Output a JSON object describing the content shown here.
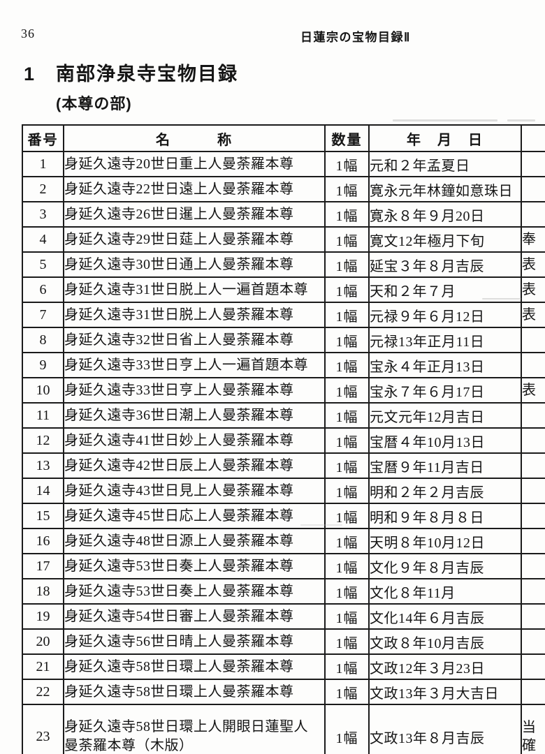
{
  "page": {
    "page_number": "36",
    "running_head": "日蓮宗の宝物目録Ⅱ",
    "section_number": "1",
    "title": "南部浄泉寺宝物目録",
    "subtitle": "(本尊の部)"
  },
  "table": {
    "headers": {
      "number": "番号",
      "name": "名　　　称",
      "quantity": "数量",
      "date": "年　月　日",
      "note": ""
    },
    "rows": [
      {
        "no": "1",
        "name": "身延久遠寺20世日重上人曼荼羅本尊",
        "qty": "1幅",
        "date": "元和２年孟夏日",
        "note": ""
      },
      {
        "no": "2",
        "name": "身延久遠寺22世日遠上人曼荼羅本尊",
        "qty": "1幅",
        "date": "寛永元年林鐘如意珠日",
        "note": ""
      },
      {
        "no": "3",
        "name": "身延久遠寺26世日暹上人曼荼羅本尊",
        "qty": "1幅",
        "date": "寛永８年９月20日",
        "note": ""
      },
      {
        "no": "4",
        "name": "身延久遠寺29世日莚上人曼荼羅本尊",
        "qty": "1幅",
        "date": "寛文12年極月下旬",
        "note": "奉"
      },
      {
        "no": "5",
        "name": "身延久遠寺30世日通上人曼荼羅本尊",
        "qty": "1幅",
        "date": "延宝３年８月吉辰",
        "note": "表"
      },
      {
        "no": "6",
        "name": "身延久遠寺31世日脱上人一遍首題本尊",
        "qty": "1幅",
        "date": "天和２年７月",
        "note": "表"
      },
      {
        "no": "7",
        "name": "身延久遠寺31世日脱上人曼荼羅本尊",
        "qty": "1幅",
        "date": "元禄９年６月12日",
        "note": "表"
      },
      {
        "no": "8",
        "name": "身延久遠寺32世日省上人曼荼羅本尊",
        "qty": "1幅",
        "date": "元禄13年正月11日",
        "note": ""
      },
      {
        "no": "9",
        "name": "身延久遠寺33世日亨上人一遍首題本尊",
        "qty": "1幅",
        "date": "宝永４年正月13日",
        "note": ""
      },
      {
        "no": "10",
        "name": "身延久遠寺33世日亨上人曼荼羅本尊",
        "qty": "1幅",
        "date": "宝永７年６月17日",
        "note": "表"
      },
      {
        "no": "11",
        "name": "身延久遠寺36世日潮上人曼荼羅本尊",
        "qty": "1幅",
        "date": "元文元年12月吉日",
        "note": ""
      },
      {
        "no": "12",
        "name": "身延久遠寺41世日妙上人曼荼羅本尊",
        "qty": "1幅",
        "date": "宝暦４年10月13日",
        "note": ""
      },
      {
        "no": "13",
        "name": "身延久遠寺42世日辰上人曼荼羅本尊",
        "qty": "1幅",
        "date": "宝暦９年11月吉日",
        "note": ""
      },
      {
        "no": "14",
        "name": "身延久遠寺43世日見上人曼荼羅本尊",
        "qty": "1幅",
        "date": "明和２年２月吉辰",
        "note": ""
      },
      {
        "no": "15",
        "name": "身延久遠寺45世日応上人曼荼羅本尊",
        "qty": "1幅",
        "date": "明和９年８月８日",
        "note": ""
      },
      {
        "no": "16",
        "name": "身延久遠寺48世日源上人曼荼羅本尊",
        "qty": "1幅",
        "date": "天明８年10月12日",
        "note": ""
      },
      {
        "no": "17",
        "name": "身延久遠寺53世日奏上人曼荼羅本尊",
        "qty": "1幅",
        "date": "文化９年８月吉辰",
        "note": ""
      },
      {
        "no": "18",
        "name": "身延久遠寺53世日奏上人曼荼羅本尊",
        "qty": "1幅",
        "date": "文化８年11月",
        "note": ""
      },
      {
        "no": "19",
        "name": "身延久遠寺54世日審上人曼荼羅本尊",
        "qty": "1幅",
        "date": "文化14年６月吉辰",
        "note": ""
      },
      {
        "no": "20",
        "name": "身延久遠寺56世日晴上人曼荼羅本尊",
        "qty": "1幅",
        "date": "文政８年10月吉辰",
        "note": ""
      },
      {
        "no": "21",
        "name": "身延久遠寺58世日環上人曼荼羅本尊",
        "qty": "1幅",
        "date": "文政12年３月23日",
        "note": ""
      },
      {
        "no": "22",
        "name": "身延久遠寺58世日環上人曼荼羅本尊",
        "qty": "1幅",
        "date": "文政13年３月大吉日",
        "note": ""
      },
      {
        "no": "23",
        "name": "身延久遠寺58世日環上人開眼日蓮聖人曼荼羅本尊（木版）",
        "qty": "1幅",
        "date": "文政13年８月吉辰",
        "note": "当\n確"
      }
    ]
  }
}
